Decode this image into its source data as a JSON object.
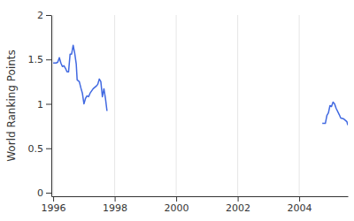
{
  "chart_data": {
    "type": "line",
    "y_label": "World Ranking Points",
    "color": "#4169e1",
    "grid": true,
    "x": [
      1996.0,
      1996.1,
      1996.15,
      1996.2,
      1996.25,
      1996.3,
      1996.35,
      1996.4,
      1996.45,
      1996.5,
      1996.55,
      1996.6,
      1996.65,
      1996.7,
      1996.75,
      1996.78,
      1996.85,
      1996.9,
      1996.95,
      1997.0,
      1997.05,
      1997.1,
      1997.15,
      1997.2,
      1997.3,
      1997.4,
      1997.45,
      1997.5,
      1997.55,
      1997.6,
      1997.65,
      1997.7,
      1997.75,
      2001.0,
      2004.75,
      2004.85,
      2004.9,
      2004.95,
      2005.0,
      2005.05,
      2005.1,
      2005.15,
      2005.2,
      2005.3,
      2005.35,
      2005.45,
      2005.55,
      2005.58
    ],
    "values": [
      1.46,
      1.46,
      1.47,
      1.52,
      1.46,
      1.42,
      1.43,
      1.4,
      1.36,
      1.36,
      1.56,
      1.56,
      1.66,
      1.57,
      1.45,
      1.27,
      1.25,
      1.18,
      1.12,
      1.0,
      1.06,
      1.09,
      1.08,
      1.12,
      1.17,
      1.2,
      1.22,
      1.28,
      1.25,
      1.08,
      1.17,
      1.06,
      0.92,
      null,
      0.78,
      0.78,
      0.87,
      0.9,
      0.98,
      0.97,
      1.02,
      1.0,
      0.95,
      0.88,
      0.84,
      0.83,
      0.8,
      0.76
    ],
    "xlim": [
      1995.94,
      2005.58
    ],
    "xticks": [
      1996,
      1998,
      2000,
      2002,
      2004
    ],
    "ylim": [
      -0.04,
      2.0
    ],
    "yticks": [
      0,
      0.5,
      1,
      1.5,
      2
    ]
  }
}
